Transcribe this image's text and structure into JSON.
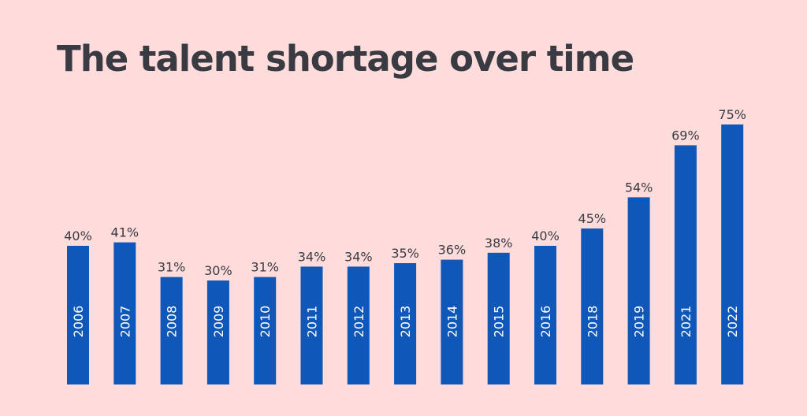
{
  "chart_data": {
    "type": "bar",
    "title": "The talent shortage over time",
    "categories": [
      "2006",
      "2007",
      "2008",
      "2009",
      "2010",
      "2011",
      "2012",
      "2013",
      "2014",
      "2015",
      "2016",
      "2018",
      "2019",
      "2021",
      "2022"
    ],
    "values": [
      40,
      41,
      31,
      30,
      31,
      34,
      34,
      35,
      36,
      38,
      40,
      45,
      54,
      69,
      75
    ],
    "value_labels": [
      "40%",
      "41%",
      "31%",
      "30%",
      "31%",
      "34%",
      "34%",
      "35%",
      "36%",
      "38%",
      "40%",
      "45%",
      "54%",
      "69%",
      "75%"
    ],
    "value_suffix": "%",
    "xlabel": "",
    "ylabel": "",
    "grid": false,
    "bar_color": "#0f57b8",
    "background_color": "#fddcdb",
    "text_color": "#3a3a42",
    "category_label_color": "#ffffff"
  }
}
